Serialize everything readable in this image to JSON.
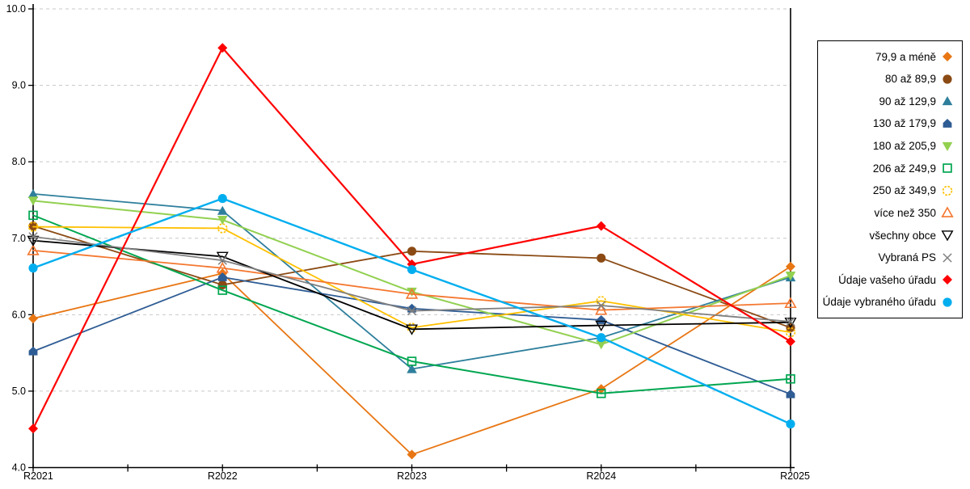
{
  "chart_data": {
    "type": "line",
    "title": "",
    "xlabel": "",
    "ylabel": "",
    "ylim": [
      4.0,
      10.0
    ],
    "grid": "horizontal-dashed",
    "legend_position": "right-box",
    "categories": [
      "R2021",
      "R2022",
      "R2023",
      "R2024",
      "R2025"
    ],
    "y_ticks": [
      {
        "value": 10.0,
        "label": "10.0"
      },
      {
        "value": 9.0,
        "label": "9.0"
      },
      {
        "value": 8.0,
        "label": "8.0"
      },
      {
        "value": 7.0,
        "label": "7.0"
      },
      {
        "value": 6.0,
        "label": "6.0"
      },
      {
        "value": 5.0,
        "label": "5.0"
      },
      {
        "value": 4.0,
        "label": "4.0"
      }
    ],
    "series": [
      {
        "name": "79,9 a méně",
        "marker": "diamond",
        "color": "#E87613",
        "line_width": 1.8,
        "values": [
          5.95,
          6.54,
          4.17,
          5.03,
          6.63
        ]
      },
      {
        "name": "80 až 89,9",
        "marker": "circle",
        "color": "#8B4A14",
        "line_width": 1.8,
        "values": [
          7.16,
          6.39,
          6.83,
          6.74,
          5.83
        ]
      },
      {
        "name": "90 až 129,9",
        "marker": "triangle-up",
        "color": "#2E7F9C",
        "line_width": 1.8,
        "values": [
          7.58,
          7.36,
          5.29,
          5.7,
          6.49
        ]
      },
      {
        "name": "130 až 179,9",
        "marker": "pentagon",
        "color": "#2E5C94",
        "line_width": 1.8,
        "values": [
          5.52,
          6.49,
          6.08,
          5.93,
          4.96
        ]
      },
      {
        "name": "180 až 205,9",
        "marker": "triangle-down",
        "color": "#92D050",
        "line_width": 2.0,
        "values": [
          7.49,
          7.24,
          6.3,
          5.61,
          6.51
        ]
      },
      {
        "name": "206 až 249,9",
        "marker": "square-open",
        "color": "#00A650",
        "line_width": 2.0,
        "values": [
          7.3,
          6.32,
          5.39,
          4.97,
          5.16
        ]
      },
      {
        "name": "250 až 349,9",
        "marker": "circle-open",
        "color": "#FFC000",
        "line_width": 1.8,
        "values": [
          7.15,
          7.13,
          5.83,
          6.18,
          5.77
        ]
      },
      {
        "name": "více než 350",
        "marker": "triangle-up-open",
        "color": "#F4772F",
        "line_width": 1.8,
        "values": [
          6.84,
          6.61,
          6.27,
          6.06,
          6.15
        ]
      },
      {
        "name": "všechny obce",
        "marker": "triangle-down-open",
        "color": "#000000",
        "line_width": 1.8,
        "values": [
          6.97,
          6.76,
          5.81,
          5.86,
          5.9
        ]
      },
      {
        "name": "Vybraná PS",
        "marker": "x-mark",
        "color": "#7F7F7F",
        "line_width": 1.8,
        "values": [
          7.02,
          6.71,
          6.05,
          6.12,
          5.91
        ]
      },
      {
        "name": "Údaje vašeho úřadu",
        "marker": "diamond",
        "color": "#FF0000",
        "line_width": 2.2,
        "values": [
          4.51,
          9.49,
          6.66,
          7.16,
          5.65
        ]
      },
      {
        "name": "Údaje vybraného úřadu",
        "marker": "circle",
        "color": "#00AEEF",
        "line_width": 2.4,
        "values": [
          6.61,
          7.52,
          6.59,
          5.7,
          4.57
        ]
      }
    ],
    "colors": {
      "grid": "#C8C8C8",
      "axis": "#000000"
    }
  }
}
